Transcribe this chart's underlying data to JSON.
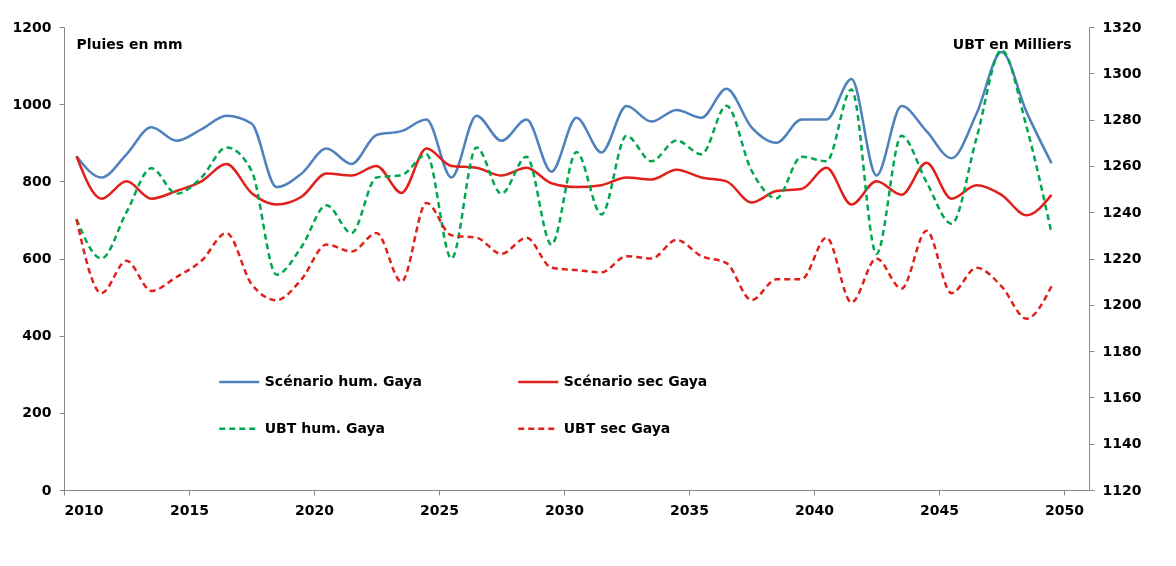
{
  "chart_data": {
    "type": "line",
    "x": [
      2010.5,
      2011.5,
      2012.5,
      2013.5,
      2014.5,
      2015.5,
      2016.5,
      2017.5,
      2018.5,
      2019.5,
      2020.5,
      2021.5,
      2022.5,
      2023.5,
      2024.5,
      2025.5,
      2026.5,
      2027.5,
      2028.5,
      2029.5,
      2030.5,
      2031.5,
      2032.5,
      2033.5,
      2034.5,
      2035.5,
      2036.5,
      2037.5,
      2038.5,
      2039.5,
      2040.5,
      2041.5,
      2042.5,
      2043.5,
      2044.5,
      2045.5,
      2046.5,
      2047.5,
      2048.5,
      2049.5
    ],
    "series": [
      {
        "name": "Scénario hum. Gaya",
        "color": "#4f81bd",
        "line_style": "solid",
        "values": [
          865,
          810,
          870,
          940,
          905,
          935,
          970,
          950,
          785,
          820,
          885,
          845,
          920,
          930,
          960,
          810,
          970,
          905,
          960,
          825,
          965,
          875,
          995,
          955,
          985,
          965,
          1040,
          940,
          900,
          960,
          960,
          1065,
          815,
          995,
          930,
          860,
          975,
          1135,
          980,
          847
        ]
      },
      {
        "name": "Scénario sec Gaya",
        "color": "#e0201b",
        "line_style": "solid",
        "values": [
          865,
          755,
          800,
          755,
          775,
          800,
          845,
          770,
          740,
          760,
          820,
          815,
          840,
          770,
          885,
          840,
          835,
          815,
          835,
          795,
          785,
          790,
          810,
          805,
          830,
          810,
          800,
          745,
          775,
          780,
          835,
          740,
          800,
          765,
          848,
          755,
          790,
          765,
          712,
          765
        ]
      },
      {
        "name": "UBT hum. Gaya",
        "color": "#00a650",
        "line_style": "dashed",
        "axis": "y2",
        "values": [
          1237,
          1220,
          1240,
          1259,
          1248,
          1255,
          1268,
          1258,
          1213,
          1225,
          1243,
          1231,
          1255,
          1256,
          1265,
          1220,
          1268,
          1248,
          1264,
          1226,
          1266,
          1239,
          1273,
          1262,
          1271,
          1265,
          1286,
          1258,
          1246,
          1264,
          1262,
          1293,
          1222,
          1273,
          1253,
          1235,
          1272,
          1310,
          1277,
          1231
        ]
      },
      {
        "name": "UBT sec Gaya",
        "color": "#e0201b",
        "line_style": "dashed",
        "axis": "y2",
        "values": [
          1237,
          1205,
          1219,
          1206,
          1212,
          1219,
          1231,
          1209,
          1202,
          1211,
          1226,
          1223,
          1231,
          1210,
          1244,
          1230,
          1229,
          1222,
          1229,
          1216,
          1215,
          1214,
          1221,
          1220,
          1228,
          1221,
          1218,
          1202,
          1211,
          1211,
          1229,
          1201,
          1220,
          1207,
          1232,
          1205,
          1216,
          1208,
          1194,
          1208
        ]
      }
    ],
    "xlim": [
      2010,
      2051
    ],
    "xticks": [
      2010,
      2015,
      2020,
      2025,
      2030,
      2035,
      2040,
      2045,
      2050
    ],
    "ylim": [
      0,
      1200
    ],
    "yticks": [
      0,
      200,
      400,
      600,
      800,
      1000,
      1200
    ],
    "y2lim": [
      1120,
      1320
    ],
    "y2ticks": [
      1120,
      1140,
      1160,
      1180,
      1200,
      1220,
      1240,
      1260,
      1280,
      1300,
      1320
    ],
    "ylabel": "Pluies en mm",
    "y2label": "UBT en Milliers",
    "legend": "bottom",
    "grid": false,
    "marker": "none"
  }
}
